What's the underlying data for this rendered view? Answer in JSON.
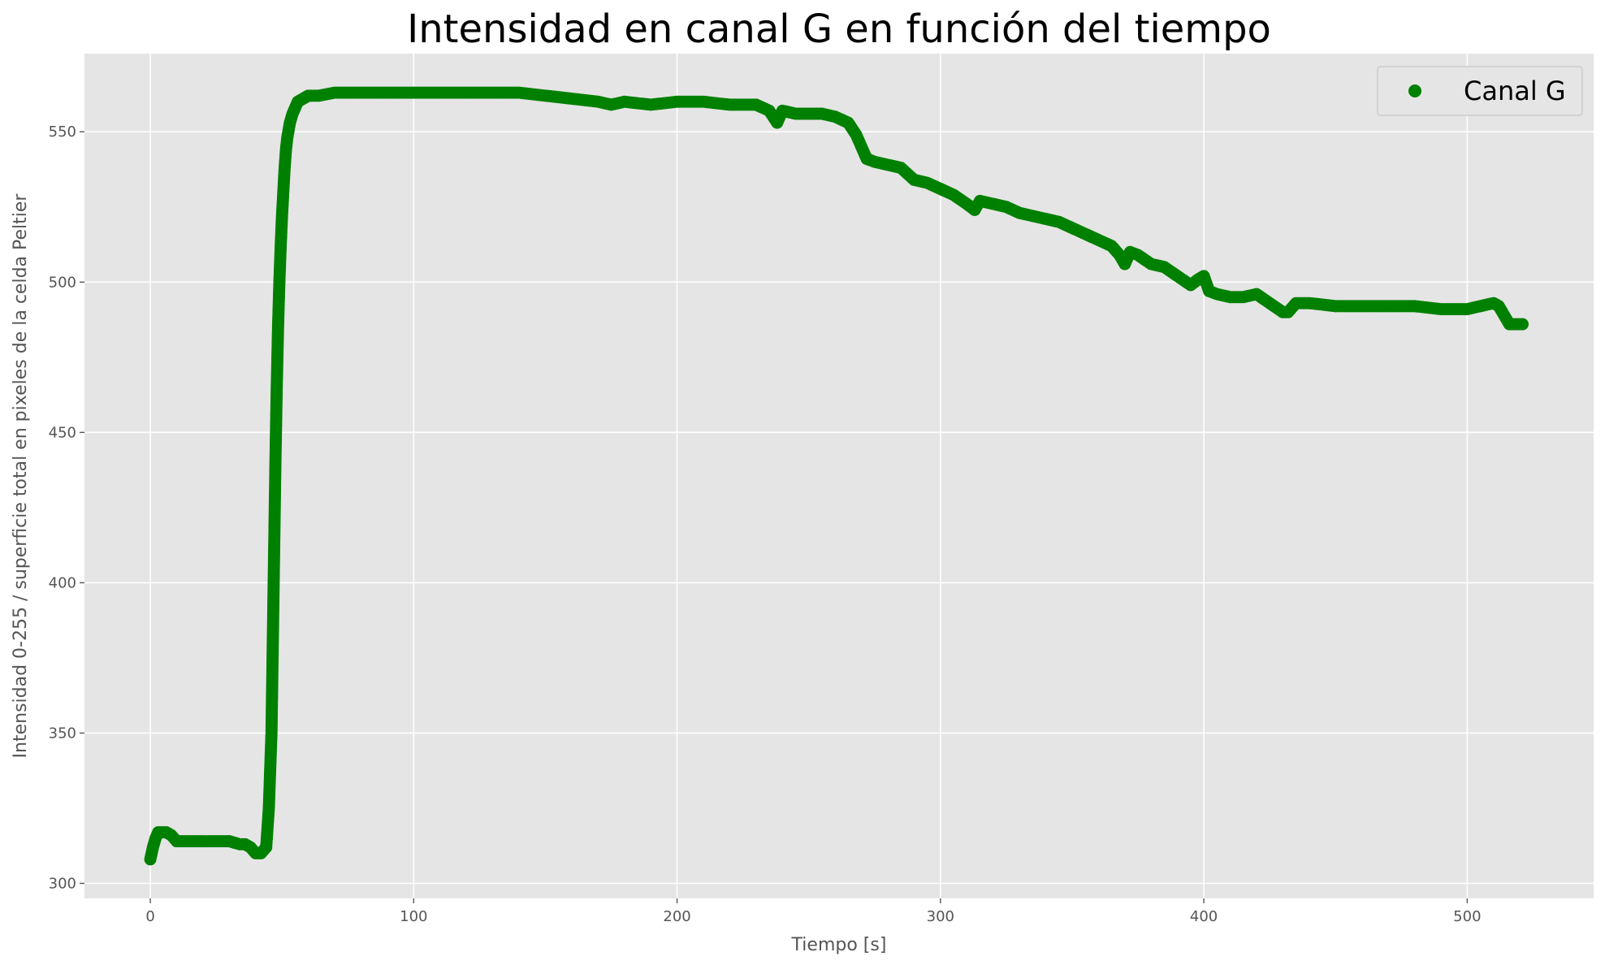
{
  "chart_data": {
    "type": "scatter",
    "title": "Intensidad en canal G en función del tiempo",
    "xlabel": "Tiempo [s]",
    "ylabel": "Intensidad 0-255 / superficie total en pixeles de la celda Peltier",
    "xlim": [
      -25,
      548
    ],
    "ylim": [
      295,
      576
    ],
    "xticks": [
      0,
      100,
      200,
      300,
      400,
      500
    ],
    "yticks": [
      300,
      350,
      400,
      450,
      500,
      550
    ],
    "grid": true,
    "legend_position": "top-right",
    "colors": {
      "series": "#008000",
      "plot_bg": "#e5e5e5",
      "grid": "#ffffff"
    },
    "series": [
      {
        "name": "Canal G",
        "marker": "circle",
        "color": "#008000",
        "x": [
          0,
          1,
          2,
          3,
          4,
          5,
          6,
          8,
          10,
          14,
          18,
          22,
          26,
          30,
          34,
          36,
          38,
          40,
          42,
          44,
          45,
          46,
          46.5,
          47,
          47.5,
          48,
          48.5,
          49,
          49.5,
          50,
          50.5,
          51,
          51.5,
          52,
          53,
          54,
          55,
          56,
          58,
          60,
          64,
          70,
          80,
          90,
          100,
          110,
          120,
          130,
          140,
          150,
          160,
          170,
          175,
          180,
          190,
          200,
          210,
          220,
          230,
          235,
          238,
          240,
          245,
          250,
          255,
          260,
          265,
          268,
          270,
          272,
          275,
          280,
          285,
          290,
          295,
          300,
          305,
          310,
          313,
          315,
          320,
          325,
          330,
          335,
          340,
          345,
          350,
          355,
          360,
          365,
          368,
          370,
          372,
          375,
          380,
          385,
          390,
          395,
          398,
          400,
          402,
          405,
          410,
          415,
          420,
          425,
          430,
          432,
          435,
          440,
          450,
          460,
          470,
          480,
          490,
          500,
          505,
          510,
          512,
          514,
          516,
          518,
          521
        ],
        "y": [
          308,
          312,
          315,
          317,
          317,
          317,
          317,
          316,
          314,
          314,
          314,
          314,
          314,
          314,
          313,
          313,
          312,
          310,
          310,
          312,
          325,
          350,
          380,
          410,
          440,
          465,
          485,
          500,
          512,
          522,
          530,
          538,
          544,
          548,
          553,
          556,
          558,
          560,
          561,
          562,
          562,
          563,
          563,
          563,
          563,
          563,
          563,
          563,
          563,
          562,
          561,
          560,
          559,
          560,
          559,
          560,
          560,
          559,
          559,
          557,
          553,
          557,
          556,
          556,
          556,
          555,
          553,
          549,
          545,
          541,
          540,
          539,
          538,
          534,
          533,
          531,
          529,
          526,
          524,
          527,
          526,
          525,
          523,
          522,
          521,
          520,
          518,
          516,
          514,
          512,
          509,
          506,
          510,
          509,
          506,
          505,
          502,
          499,
          501,
          502,
          497,
          496,
          495,
          495,
          496,
          493,
          490,
          490,
          493,
          493,
          492,
          492,
          492,
          492,
          491,
          491,
          492,
          493,
          492,
          489,
          486,
          486,
          486
        ]
      }
    ]
  }
}
